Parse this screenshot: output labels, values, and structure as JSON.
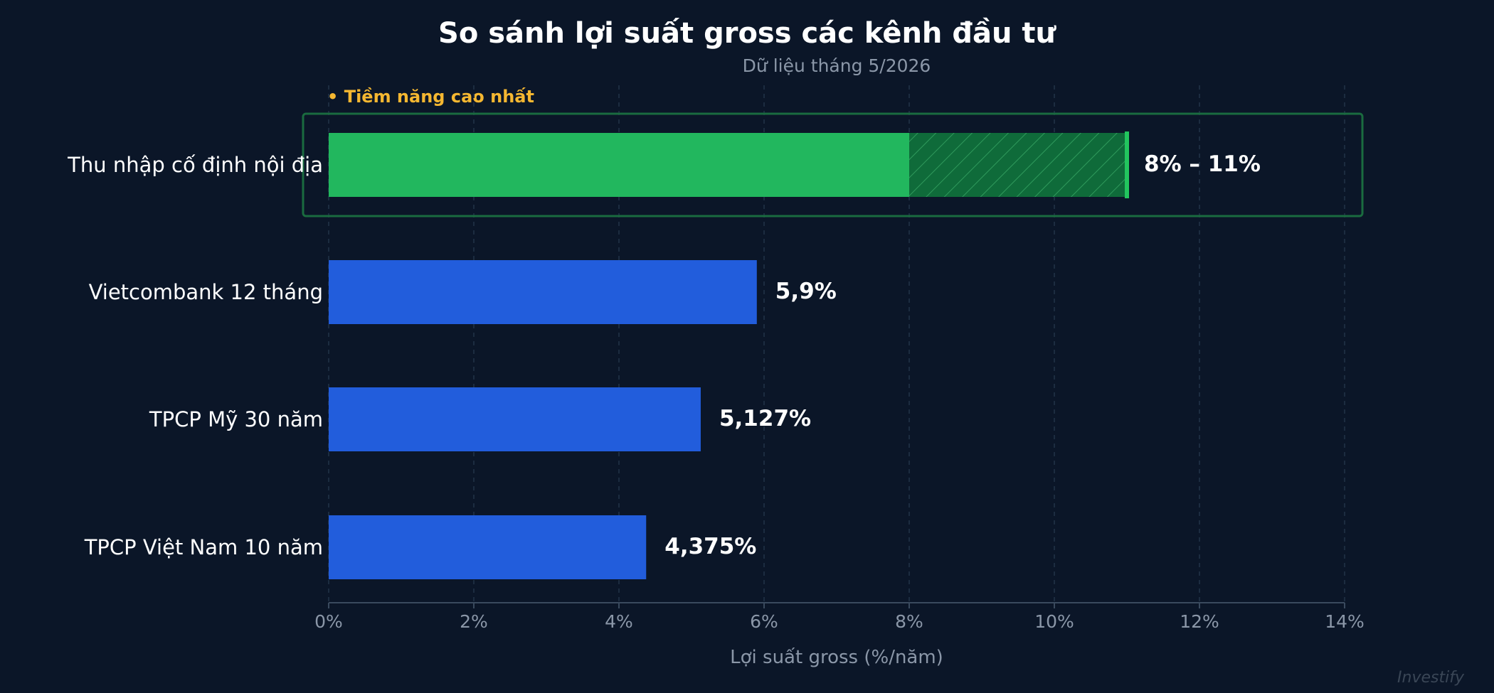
{
  "chart_data": {
    "type": "bar",
    "orientation": "horizontal",
    "title": "So sánh lợi suất gross các kênh đầu tư",
    "subtitle": "Dữ liệu tháng 5/2026",
    "xlabel": "Lợi suất gross (%/năm)",
    "ylabel": "",
    "xlim": [
      0,
      14
    ],
    "xticks": [
      0,
      2,
      4,
      6,
      8,
      10,
      12,
      14
    ],
    "xtick_labels": [
      "0%",
      "2%",
      "4%",
      "6%",
      "8%",
      "10%",
      "12%",
      "14%"
    ],
    "grid": "vertical-dashed",
    "categories": [
      "Thu nhập cố định nội địa",
      "Vietcombank 12 tháng",
      "TPCP Mỹ 30 năm",
      "TPCP Việt Nam 10 năm"
    ],
    "values": [
      8,
      5.9,
      5.127,
      4.375
    ],
    "range_high": [
      11,
      null,
      null,
      null
    ],
    "value_labels": [
      "8% – 11%",
      "5,9%",
      "5,127%",
      "4,375%"
    ],
    "highlight": {
      "category": "Thu nhập cố định nội địa",
      "badge": "• Tiềm năng cao nhất"
    },
    "colors": {
      "background": "#0b1628",
      "bar": "#225ddc",
      "highlight_bar": "#22b75e",
      "highlight_range": "#0f6b3a",
      "highlight_label": "#22c55e",
      "badge": "#f5b731",
      "grid": "#1c2c40",
      "axis_text": "#8b97a8"
    }
  },
  "watermark": "Investify"
}
